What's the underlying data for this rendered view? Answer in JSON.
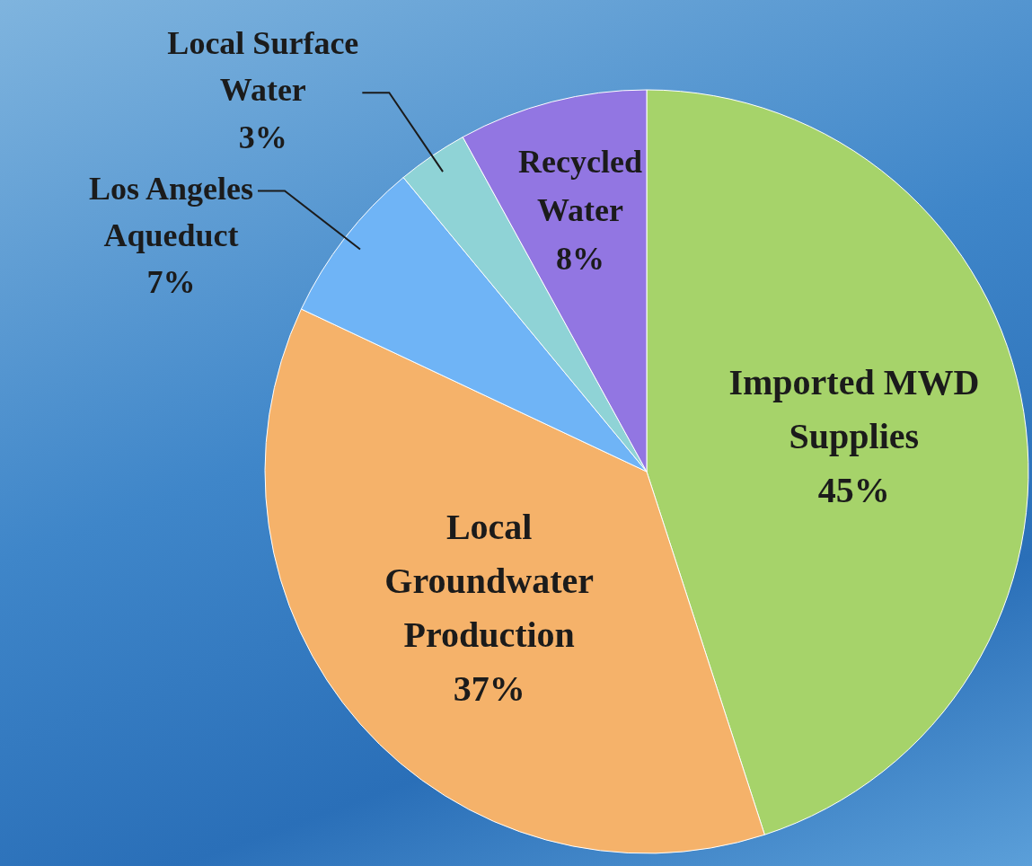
{
  "chart_data": {
    "type": "pie",
    "categories": [
      "Imported MWD Supplies",
      "Local Groundwater Production",
      "Los Angeles Aqueduct",
      "Local Surface Water",
      "Recycled Water"
    ],
    "values": [
      45,
      37,
      7,
      3,
      8
    ],
    "value_labels": [
      "45%",
      "37%",
      "7%",
      "3%",
      "8%"
    ],
    "colors": [
      "#a6d36a",
      "#f5b26a",
      "#6fb4f6",
      "#8fd3d6",
      "#9276e2"
    ],
    "legend": false
  }
}
